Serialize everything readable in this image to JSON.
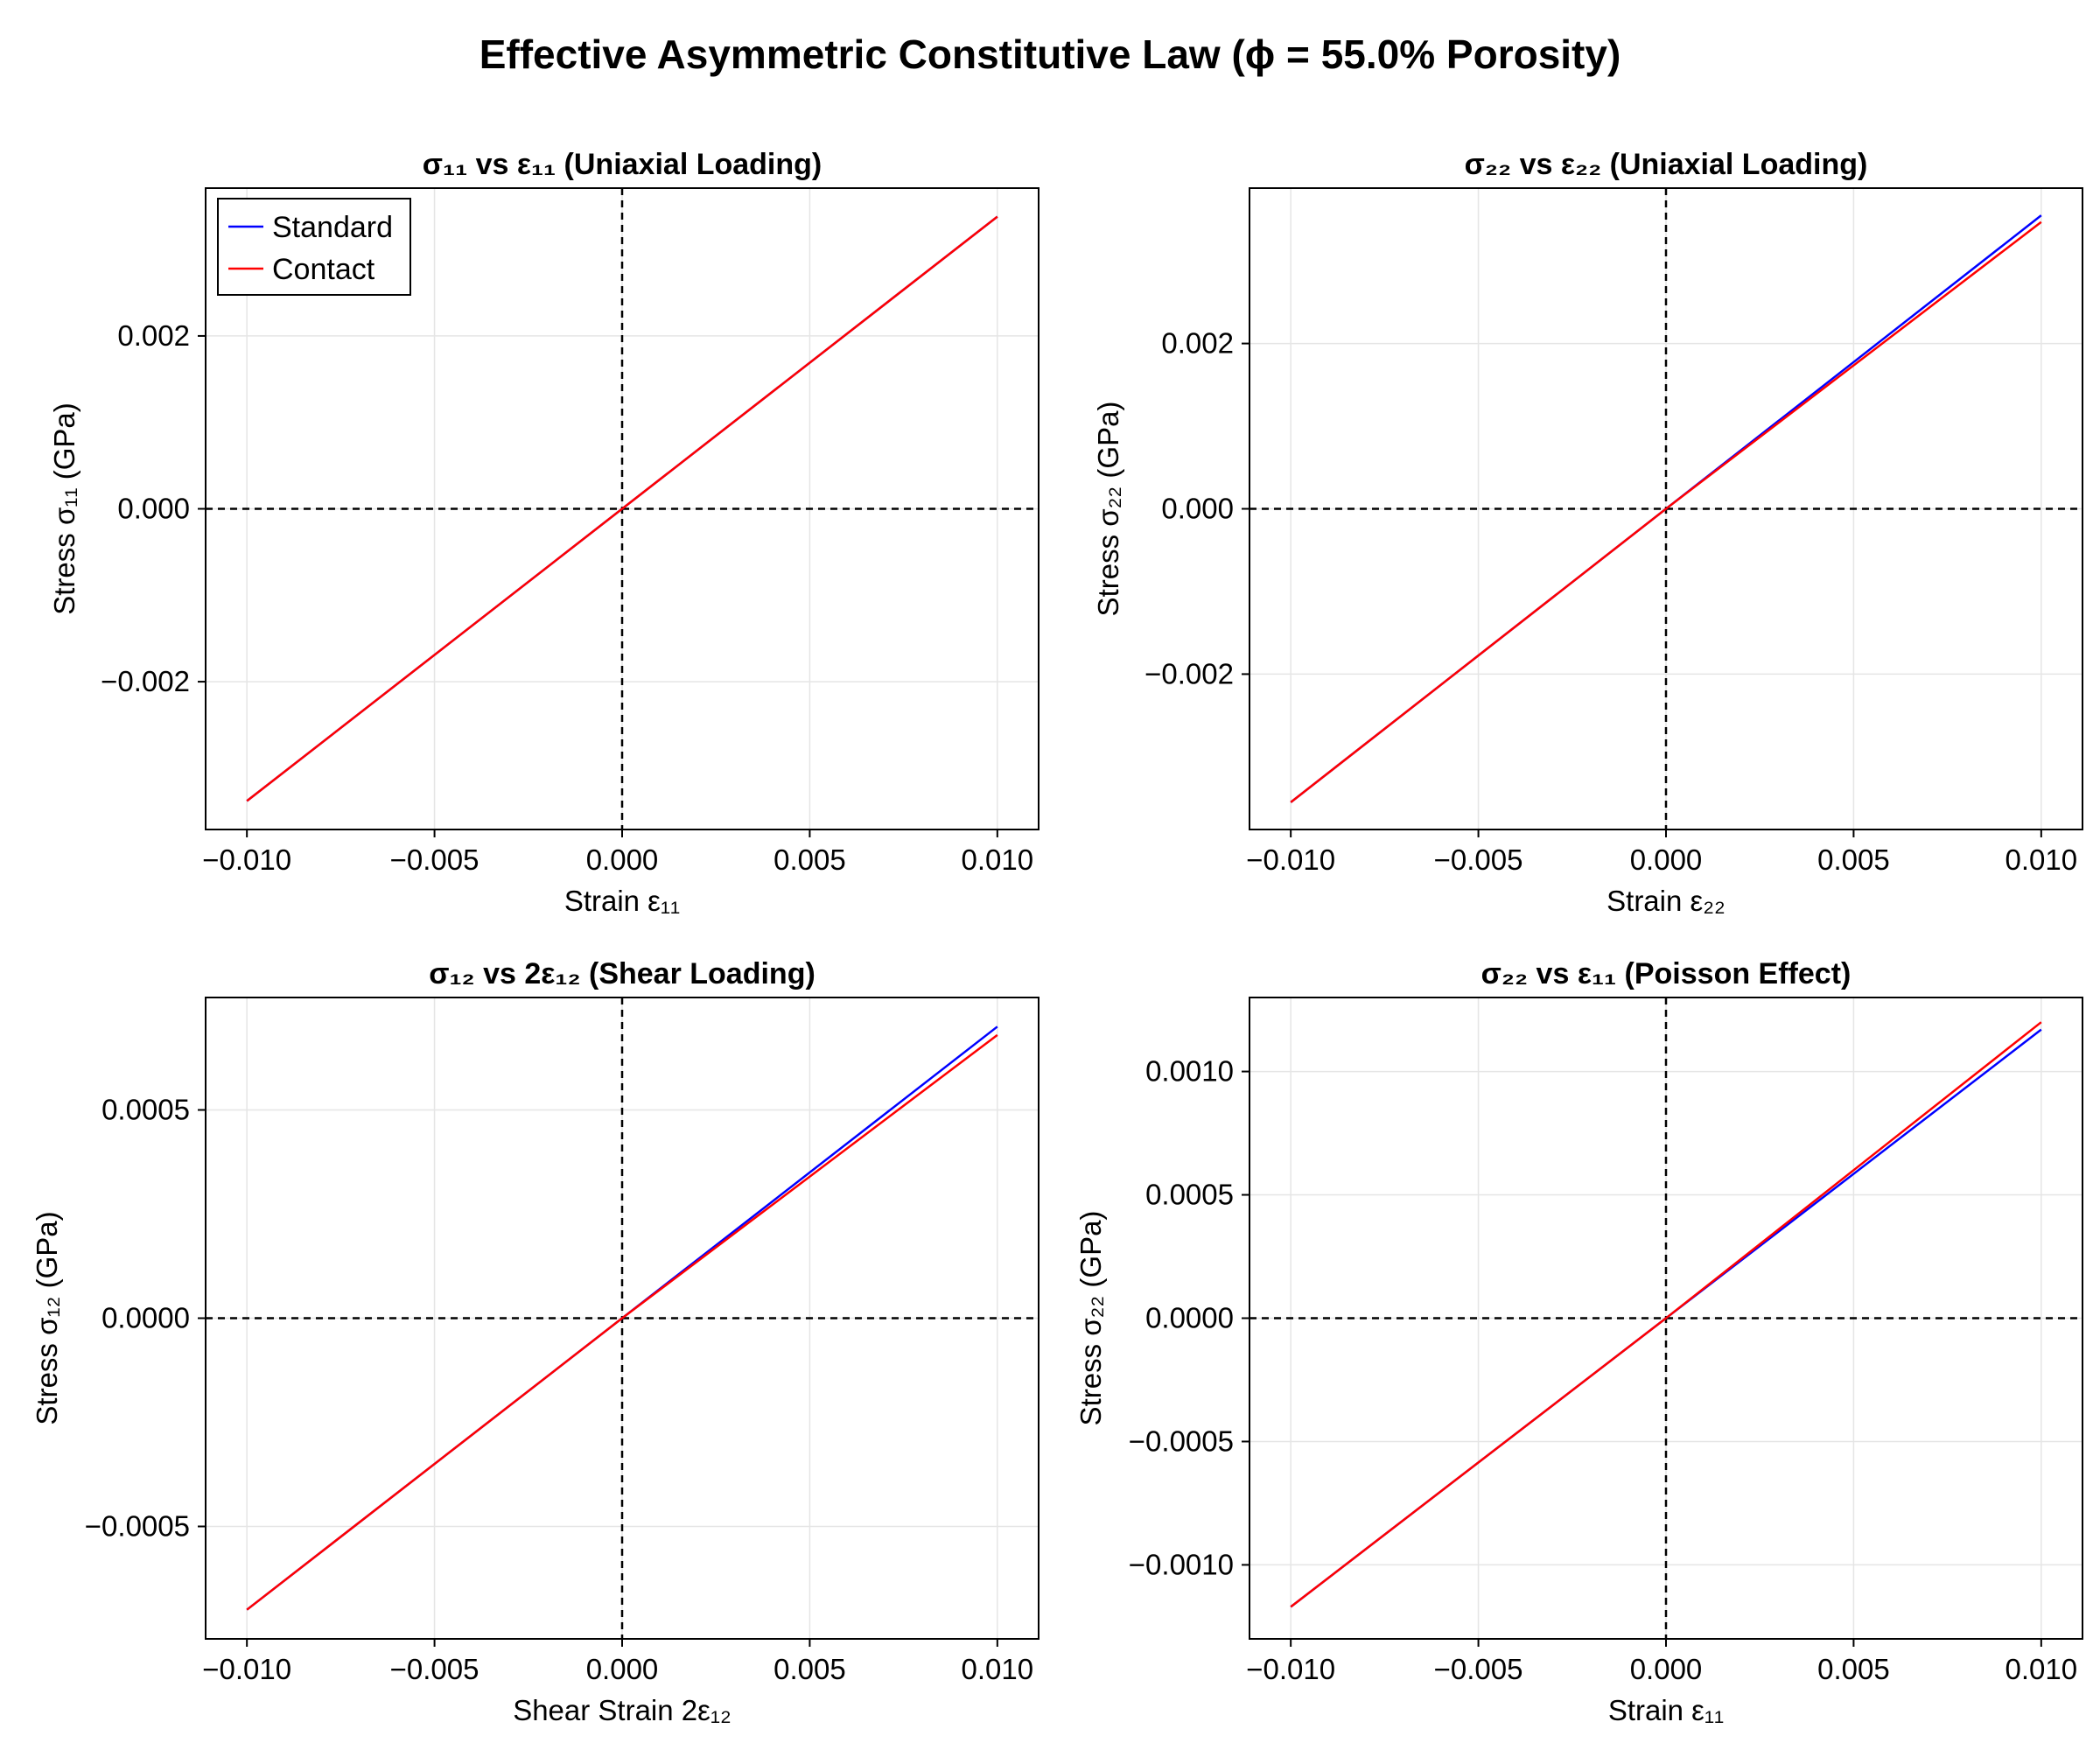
{
  "figure_title": "Effective Asymmetric Constitutive Law (ϕ = 55.0% Porosity)",
  "colors": {
    "standard": "#0000ff",
    "contact": "#ff0000",
    "zero_line": "#000000",
    "grid": "#e5e5e5"
  },
  "chart_data": [
    {
      "type": "line",
      "title": "σ₁₁ vs ε₁₁ (Uniaxial Loading)",
      "xlabel": "Strain ε₁₁",
      "ylabel": "Stress σ₁₁ (GPa)",
      "xlim": [
        -0.0111,
        0.0111
      ],
      "ylim": [
        -0.00371,
        0.00371
      ],
      "xticks": [
        "−0.010",
        "−0.005",
        "0.000",
        "0.005",
        "0.010"
      ],
      "xtick_values": [
        -0.01,
        -0.005,
        0,
        0.005,
        0.01
      ],
      "yticks": [
        "−0.002",
        "0.000",
        "0.002"
      ],
      "ytick_values": [
        -0.002,
        0,
        0.002
      ],
      "grid": true,
      "legend": {
        "placement": "top-left",
        "entries": [
          "Standard",
          "Contact"
        ]
      },
      "series": [
        {
          "name": "Standard",
          "x": [
            -0.01,
            0,
            0.01
          ],
          "y": [
            -0.00338,
            0,
            0.00338
          ]
        },
        {
          "name": "Contact",
          "x": [
            -0.01,
            0,
            0.01
          ],
          "y": [
            -0.00338,
            0,
            0.00338
          ]
        }
      ]
    },
    {
      "type": "line",
      "title": "σ₂₂ vs ε₂₂ (Uniaxial Loading)",
      "xlabel": "Strain ε₂₂",
      "ylabel": "Stress σ₂₂ (GPa)",
      "xlim": [
        -0.0111,
        0.0111
      ],
      "ylim": [
        -0.00388,
        0.00388
      ],
      "xticks": [
        "−0.010",
        "−0.005",
        "0.000",
        "0.005",
        "0.010"
      ],
      "xtick_values": [
        -0.01,
        -0.005,
        0,
        0.005,
        0.01
      ],
      "yticks": [
        "−0.002",
        "0.000",
        "0.002"
      ],
      "ytick_values": [
        -0.002,
        0,
        0.002
      ],
      "grid": true,
      "series": [
        {
          "name": "Standard",
          "x": [
            -0.01,
            0,
            0.01
          ],
          "y": [
            -0.00355,
            0,
            0.00355
          ]
        },
        {
          "name": "Contact",
          "x": [
            -0.01,
            0,
            0.01
          ],
          "y": [
            -0.00355,
            0,
            0.00347
          ]
        }
      ]
    },
    {
      "type": "line",
      "title": "σ₁₂ vs 2ε₁₂ (Shear Loading)",
      "xlabel": "Shear Strain 2ε₁₂",
      "ylabel": "Stress σ₁₂ (GPa)",
      "xlim": [
        -0.0111,
        0.0111
      ],
      "ylim": [
        -0.00077,
        0.00077
      ],
      "xticks": [
        "−0.010",
        "−0.005",
        "0.000",
        "0.005",
        "0.010"
      ],
      "xtick_values": [
        -0.01,
        -0.005,
        0,
        0.005,
        0.01
      ],
      "yticks": [
        "−0.0005",
        "0.0000",
        "0.0005"
      ],
      "ytick_values": [
        -0.0005,
        0,
        0.0005
      ],
      "grid": true,
      "series": [
        {
          "name": "Standard",
          "x": [
            -0.01,
            0,
            0.01
          ],
          "y": [
            -0.0007,
            0,
            0.0007
          ]
        },
        {
          "name": "Contact",
          "x": [
            -0.01,
            0,
            0.01
          ],
          "y": [
            -0.0007,
            0,
            0.00068
          ]
        }
      ]
    },
    {
      "type": "line",
      "title": "σ₂₂ vs ε₁₁ (Poisson Effect)",
      "xlabel": "Strain ε₁₁",
      "ylabel": "Stress σ₂₂ (GPa)",
      "xlim": [
        -0.0111,
        0.0111
      ],
      "ylim": [
        -0.0013,
        0.0013
      ],
      "xticks": [
        "−0.010",
        "−0.005",
        "0.000",
        "0.005",
        "0.010"
      ],
      "xtick_values": [
        -0.01,
        -0.005,
        0,
        0.005,
        0.01
      ],
      "yticks": [
        "−0.0010",
        "−0.0005",
        "0.0000",
        "0.0005",
        "0.0010"
      ],
      "ytick_values": [
        -0.001,
        -0.0005,
        0,
        0.0005,
        0.001
      ],
      "grid": true,
      "series": [
        {
          "name": "Standard",
          "x": [
            -0.01,
            0,
            0.01
          ],
          "y": [
            -0.00117,
            0,
            0.00117
          ]
        },
        {
          "name": "Contact",
          "x": [
            -0.01,
            0,
            0.01
          ],
          "y": [
            -0.00117,
            0,
            0.0012
          ]
        }
      ]
    }
  ]
}
